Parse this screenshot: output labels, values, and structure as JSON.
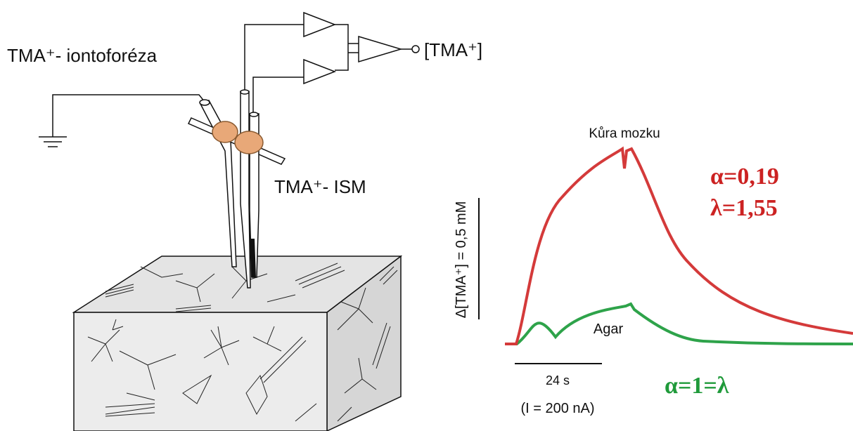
{
  "labels": {
    "iontophoresis": "TMA⁺- iontoforéza",
    "output": "[TMA⁺]",
    "ism": "TMA⁺- ISM",
    "cortex": "Kůra mozku",
    "alpha_cortex": "α=0,19",
    "lambda_cortex": "λ=1,55",
    "scale_y": "Δ[TMA⁺] = 0,5 mM",
    "agar": "Agar",
    "scale_x": "24 s",
    "current": "(I = 200 nA)",
    "agar_params": "α=1=λ"
  }
}
